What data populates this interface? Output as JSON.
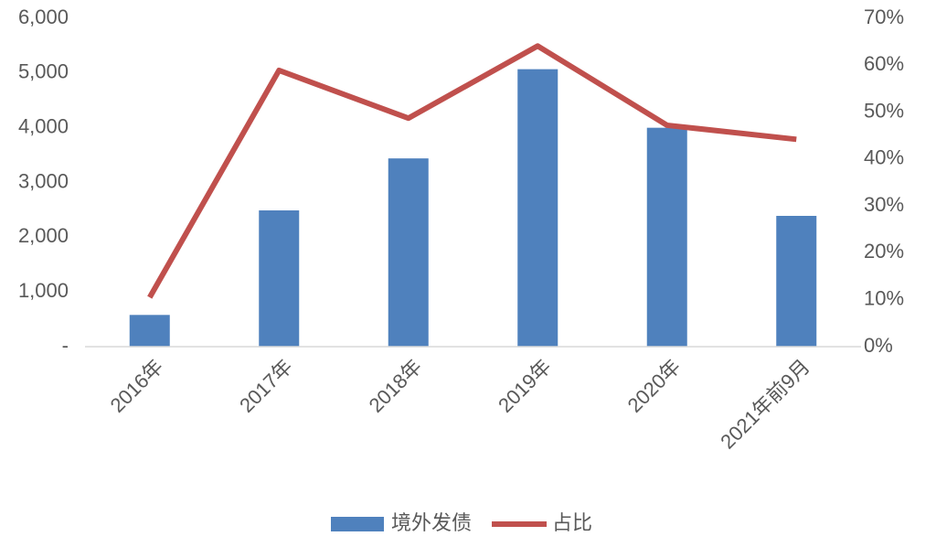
{
  "chart_data": {
    "type": "combo",
    "categories": [
      "2016年",
      "2017年",
      "2018年",
      "2019年",
      "2020年",
      "2021年前9月"
    ],
    "series": [
      {
        "name": "境外发债",
        "type": "bar",
        "color": "#4f81bd",
        "values": [
          580,
          2490,
          3440,
          5070,
          4000,
          2390
        ]
      },
      {
        "name": "占比",
        "type": "line",
        "axis": "y2",
        "color": "#c0504d",
        "values": [
          10.5,
          58.9,
          48.7,
          64.1,
          47.2,
          44.2
        ]
      }
    ],
    "ylim": [
      0,
      6000
    ],
    "yticks": [
      {
        "value": 0,
        "label": "-"
      },
      {
        "value": 1000,
        "label": "1,000"
      },
      {
        "value": 2000,
        "label": "2,000"
      },
      {
        "value": 3000,
        "label": "3,000"
      },
      {
        "value": 4000,
        "label": "4,000"
      },
      {
        "value": 5000,
        "label": "5,000"
      },
      {
        "value": 6000,
        "label": "6,000"
      }
    ],
    "y2lim": [
      0,
      70
    ],
    "y2ticks": [
      {
        "value": 0,
        "label": "0%"
      },
      {
        "value": 10,
        "label": "10%"
      },
      {
        "value": 20,
        "label": "20%"
      },
      {
        "value": 30,
        "label": "30%"
      },
      {
        "value": 40,
        "label": "40%"
      },
      {
        "value": 50,
        "label": "50%"
      },
      {
        "value": 60,
        "label": "60%"
      },
      {
        "value": 70,
        "label": "70%"
      }
    ],
    "grid": false,
    "legend": "bottom"
  }
}
